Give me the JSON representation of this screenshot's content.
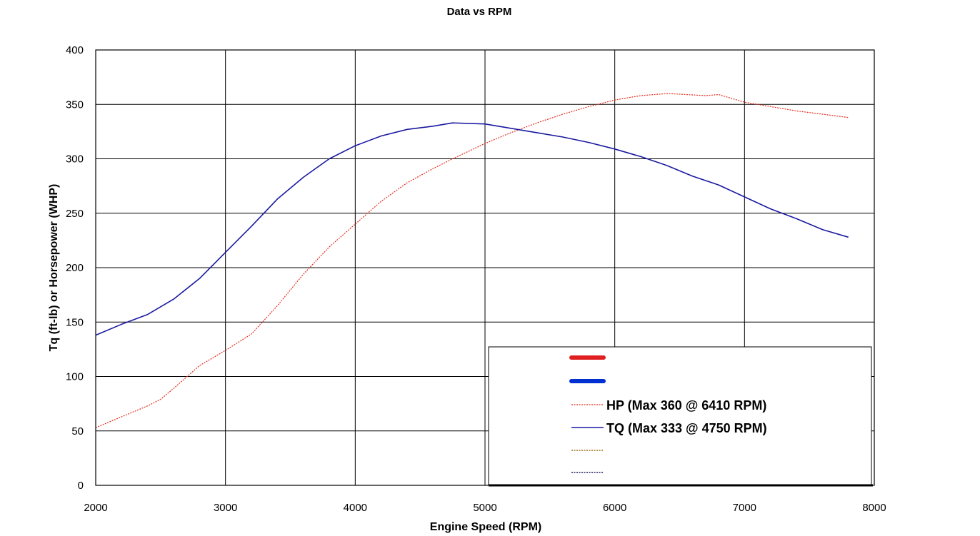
{
  "chart_data": {
    "type": "line",
    "title": "Data vs RPM",
    "xlabel": "Engine Speed (RPM)",
    "ylabel": "Tq (ft-lb) or Horsepower (WHP)",
    "xlim": [
      2000,
      8000
    ],
    "ylim": [
      0,
      400
    ],
    "xticks": [
      2000,
      3000,
      4000,
      5000,
      6000,
      7000,
      8000
    ],
    "yticks": [
      0,
      50,
      100,
      150,
      200,
      250,
      300,
      350,
      400
    ],
    "grid": true,
    "legend_position": "bottom-right",
    "series": [
      {
        "name": "HP (Max 360 @ 6410 RPM)",
        "color": "#e03020",
        "style": "dotted",
        "x": [
          2000,
          2200,
          2400,
          2500,
          2600,
          2800,
          3000,
          3200,
          3400,
          3600,
          3800,
          4000,
          4200,
          4400,
          4600,
          4750,
          5000,
          5200,
          5400,
          5600,
          5800,
          6000,
          6200,
          6410,
          6550,
          6700,
          6800,
          7000,
          7200,
          7400,
          7600,
          7800
        ],
        "values": [
          53,
          63,
          73,
          79,
          89,
          110,
          124,
          139,
          165,
          194,
          219,
          240,
          261,
          278,
          291,
          300,
          314,
          324,
          333,
          341,
          348,
          354,
          358,
          360,
          359,
          358,
          359,
          352,
          348,
          344,
          341,
          338
        ]
      },
      {
        "name": "TQ (Max 333 @ 4750 RPM)",
        "color": "#1a1aa0",
        "style": "solid",
        "x": [
          2000,
          2200,
          2400,
          2600,
          2800,
          3000,
          3200,
          3400,
          3600,
          3800,
          4000,
          4200,
          4400,
          4600,
          4750,
          5000,
          5200,
          5400,
          5600,
          5800,
          6000,
          6200,
          6400,
          6600,
          6800,
          7000,
          7200,
          7400,
          7600,
          7800
        ],
        "values": [
          138,
          148,
          157,
          171,
          190,
          214,
          238,
          263,
          283,
          300,
          312,
          321,
          327,
          330,
          333,
          332,
          328,
          324,
          320,
          315,
          309,
          302,
          294,
          284,
          276,
          265,
          254,
          245,
          235,
          228
        ]
      }
    ],
    "legend_blanks": [
      {
        "color": "#e02020",
        "style": "thick"
      },
      {
        "color": "#0030d0",
        "style": "thick"
      },
      {
        "color": "#a0701a",
        "style": "dotted"
      },
      {
        "color": "#202060",
        "style": "dotted"
      }
    ]
  }
}
